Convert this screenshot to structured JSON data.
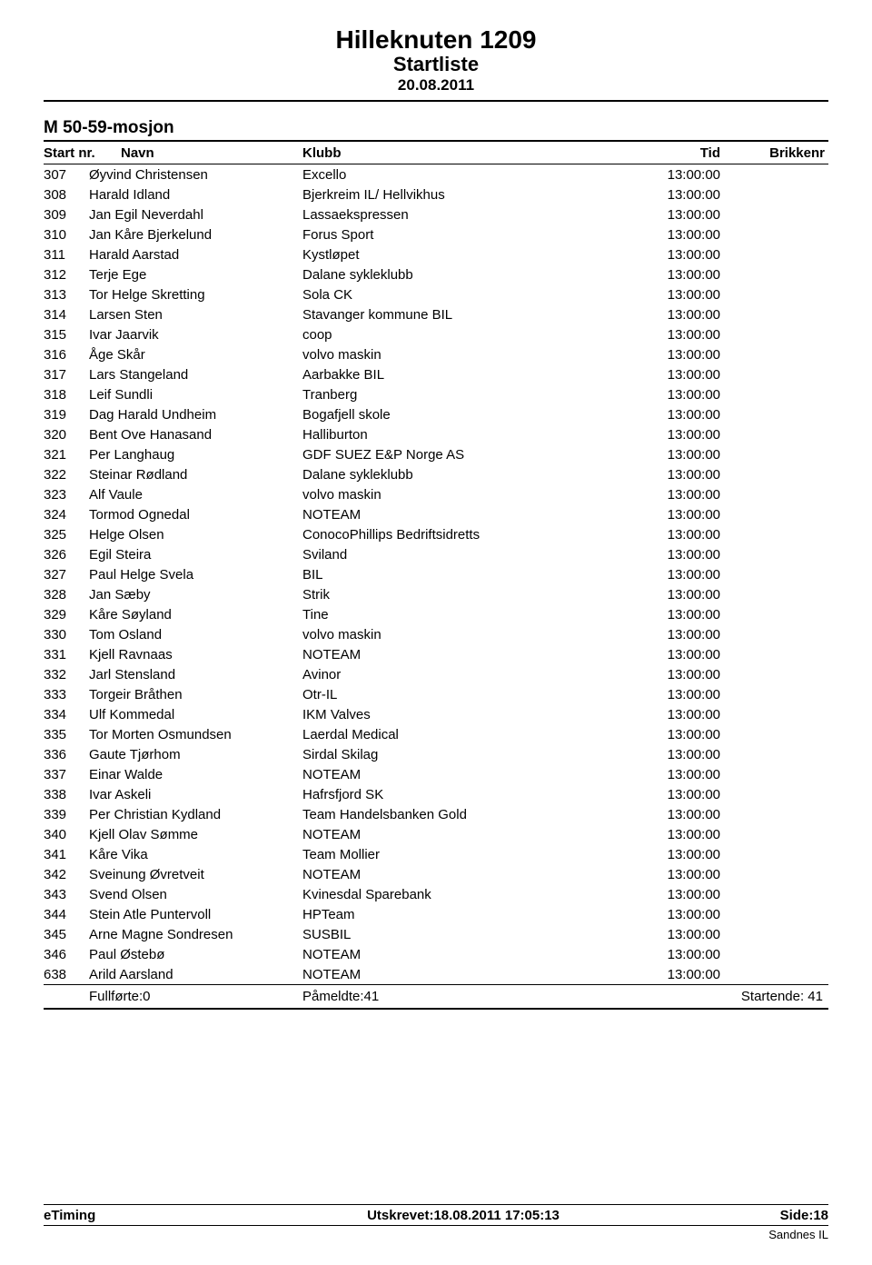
{
  "header": {
    "title": "Hilleknuten 1209",
    "subtitle": "Startliste",
    "date": "20.08.2011"
  },
  "category": "M 50-59-mosjon",
  "columns": {
    "c1": "Start nr.",
    "c2": "Navn",
    "c3": "Klubb",
    "c4": "Tid",
    "c5": "Brikkenr"
  },
  "rows": [
    {
      "nr": "307",
      "navn": "Øyvind Christensen",
      "klubb": "Excello",
      "tid": "13:00:00"
    },
    {
      "nr": "308",
      "navn": "Harald Idland",
      "klubb": "Bjerkreim IL/ Hellvikhus",
      "tid": "13:00:00"
    },
    {
      "nr": "309",
      "navn": "Jan Egil Neverdahl",
      "klubb": "Lassaekspressen",
      "tid": "13:00:00"
    },
    {
      "nr": "310",
      "navn": "Jan Kåre Bjerkelund",
      "klubb": "Forus Sport",
      "tid": "13:00:00"
    },
    {
      "nr": "311",
      "navn": "Harald Aarstad",
      "klubb": "Kystløpet",
      "tid": "13:00:00"
    },
    {
      "nr": "312",
      "navn": "Terje Ege",
      "klubb": "Dalane sykleklubb",
      "tid": "13:00:00"
    },
    {
      "nr": "313",
      "navn": "Tor Helge Skretting",
      "klubb": "Sola CK",
      "tid": "13:00:00"
    },
    {
      "nr": "314",
      "navn": "Larsen Sten",
      "klubb": "Stavanger kommune BIL",
      "tid": "13:00:00"
    },
    {
      "nr": "315",
      "navn": "Ivar Jaarvik",
      "klubb": "coop",
      "tid": "13:00:00"
    },
    {
      "nr": "316",
      "navn": "Åge Skår",
      "klubb": "volvo maskin",
      "tid": "13:00:00"
    },
    {
      "nr": "317",
      "navn": "Lars Stangeland",
      "klubb": "Aarbakke BIL",
      "tid": "13:00:00"
    },
    {
      "nr": "318",
      "navn": "Leif Sundli",
      "klubb": "Tranberg",
      "tid": "13:00:00"
    },
    {
      "nr": "319",
      "navn": "Dag Harald Undheim",
      "klubb": "Bogafjell skole",
      "tid": "13:00:00"
    },
    {
      "nr": "320",
      "navn": "Bent Ove Hanasand",
      "klubb": "Halliburton",
      "tid": "13:00:00"
    },
    {
      "nr": "321",
      "navn": "Per Langhaug",
      "klubb": "GDF SUEZ E&P Norge AS",
      "tid": "13:00:00"
    },
    {
      "nr": "322",
      "navn": "Steinar Rødland",
      "klubb": "Dalane sykleklubb",
      "tid": "13:00:00"
    },
    {
      "nr": "323",
      "navn": "Alf Vaule",
      "klubb": "volvo maskin",
      "tid": "13:00:00"
    },
    {
      "nr": "324",
      "navn": "Tormod Ognedal",
      "klubb": "NOTEAM",
      "tid": "13:00:00"
    },
    {
      "nr": "325",
      "navn": "Helge Olsen",
      "klubb": "ConocoPhillips Bedriftsidretts",
      "tid": "13:00:00"
    },
    {
      "nr": "326",
      "navn": "Egil Steira",
      "klubb": "Sviland",
      "tid": "13:00:00"
    },
    {
      "nr": "327",
      "navn": "Paul Helge Svela",
      "klubb": "BIL",
      "tid": "13:00:00"
    },
    {
      "nr": "328",
      "navn": "Jan Sæby",
      "klubb": "Strik",
      "tid": "13:00:00"
    },
    {
      "nr": "329",
      "navn": "Kåre Søyland",
      "klubb": "Tine",
      "tid": "13:00:00"
    },
    {
      "nr": "330",
      "navn": "Tom Osland",
      "klubb": "volvo maskin",
      "tid": "13:00:00"
    },
    {
      "nr": "331",
      "navn": "Kjell Ravnaas",
      "klubb": "NOTEAM",
      "tid": "13:00:00"
    },
    {
      "nr": "332",
      "navn": "Jarl Stensland",
      "klubb": "Avinor",
      "tid": "13:00:00"
    },
    {
      "nr": "333",
      "navn": "Torgeir Bråthen",
      "klubb": "Otr-IL",
      "tid": "13:00:00"
    },
    {
      "nr": "334",
      "navn": "Ulf Kommedal",
      "klubb": "IKM Valves",
      "tid": "13:00:00"
    },
    {
      "nr": "335",
      "navn": "Tor Morten Osmundsen",
      "klubb": "Laerdal Medical",
      "tid": "13:00:00"
    },
    {
      "nr": "336",
      "navn": "Gaute Tjørhom",
      "klubb": "Sirdal Skilag",
      "tid": "13:00:00"
    },
    {
      "nr": "337",
      "navn": "Einar Walde",
      "klubb": "NOTEAM",
      "tid": "13:00:00"
    },
    {
      "nr": "338",
      "navn": "Ivar Askeli",
      "klubb": "Hafrsfjord SK",
      "tid": "13:00:00"
    },
    {
      "nr": "339",
      "navn": "Per Christian Kydland",
      "klubb": "Team Handelsbanken Gold",
      "tid": "13:00:00"
    },
    {
      "nr": "340",
      "navn": "Kjell Olav Sømme",
      "klubb": "NOTEAM",
      "tid": "13:00:00"
    },
    {
      "nr": "341",
      "navn": "Kåre Vika",
      "klubb": "Team Mollier",
      "tid": "13:00:00"
    },
    {
      "nr": "342",
      "navn": "Sveinung Øvretveit",
      "klubb": "NOTEAM",
      "tid": "13:00:00"
    },
    {
      "nr": "343",
      "navn": "Svend Olsen",
      "klubb": "Kvinesdal Sparebank",
      "tid": "13:00:00"
    },
    {
      "nr": "344",
      "navn": "Stein Atle Puntervoll",
      "klubb": "HPTeam",
      "tid": "13:00:00"
    },
    {
      "nr": "345",
      "navn": "Arne Magne Sondresen",
      "klubb": "SUSBIL",
      "tid": "13:00:00"
    },
    {
      "nr": "346",
      "navn": "Paul Østebø",
      "klubb": "NOTEAM",
      "tid": "13:00:00"
    },
    {
      "nr": "638",
      "navn": "Arild Aarsland",
      "klubb": "NOTEAM",
      "tid": "13:00:00"
    }
  ],
  "summary": {
    "fullforte": "Fullførte:0",
    "pameldte": "Påmeldte:41",
    "startende": "Startende: 41"
  },
  "footer": {
    "left": "eTiming",
    "center": "Utskrevet:18.08.2011 17:05:13",
    "right": "Side:18",
    "sub": "Sandnes IL"
  }
}
